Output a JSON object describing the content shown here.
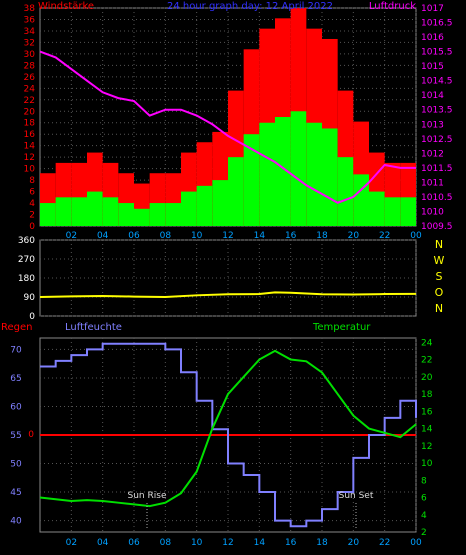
{
  "panel1": {
    "title": "24 hour graph day: 12 April 2022",
    "left_label": "Windstärke",
    "right_label": "Luftdruck",
    "wind_ticks": [
      "0",
      "2",
      "4",
      "6",
      "8",
      "10",
      "12",
      "14",
      "16",
      "18",
      "20",
      "22",
      "24",
      "26",
      "28",
      "30",
      "32",
      "34",
      "36",
      "38"
    ],
    "pressure_ticks": [
      "1009.5",
      "1010",
      "1010.5",
      "1011",
      "1011.5",
      "1012",
      "1012.5",
      "1013",
      "1013.5",
      "1014",
      "1014.5",
      "1015",
      "1015.5",
      "1016",
      "1016.5",
      "1017"
    ]
  },
  "panel2": {
    "dir_ticks": [
      "0",
      "90",
      "180",
      "270",
      "360"
    ],
    "compass": [
      "N",
      "W",
      "S",
      "O",
      "N"
    ]
  },
  "panel3": {
    "rain_label": "Regen",
    "humidity_label": "Luftfeuchte",
    "temp_label": "Temperatur",
    "humidity_ticks": [
      "40",
      "45",
      "50",
      "55",
      "60",
      "65",
      "70"
    ],
    "rain_zero": "0",
    "temp_ticks": [
      "2",
      "4",
      "6",
      "8",
      "10",
      "12",
      "14",
      "16",
      "18",
      "20",
      "22",
      "24"
    ],
    "sunrise": "Sun Rise",
    "sunset": "Sun Set"
  },
  "x_ticks": [
    "02",
    "04",
    "06",
    "08",
    "10",
    "12",
    "14",
    "16",
    "18",
    "20",
    "22",
    "00"
  ],
  "colors": {
    "wind_gust": "#ff0000",
    "wind_avg": "#00ff00",
    "pressure": "#ff00ff",
    "direction": "#ffff00",
    "humidity": "#8080ff",
    "temperature": "#00e000",
    "rain": "#ff0000",
    "grid": "#555555"
  },
  "chart_data": [
    {
      "type": "bar",
      "title": "24 hour graph day: 12 April 2022",
      "x": [
        0,
        1,
        2,
        3,
        4,
        5,
        6,
        7,
        8,
        9,
        10,
        11,
        12,
        13,
        14,
        15,
        16,
        17,
        18,
        19,
        20,
        21,
        22,
        23,
        24
      ],
      "series": [
        {
          "name": "Windstärke",
          "values": [
            4,
            5,
            5,
            6,
            5,
            4,
            3,
            4,
            4,
            6,
            7,
            8,
            12,
            16,
            18,
            19,
            20,
            18,
            17,
            12,
            9,
            6,
            5,
            5,
            6
          ]
        },
        {
          "name": "Luftdruck",
          "values": [
            1015.5,
            1015.3,
            1014.9,
            1014.5,
            1014.1,
            1013.9,
            1013.8,
            1013.3,
            1013.5,
            1013.5,
            1013.3,
            1013.0,
            1012.6,
            1012.3,
            1012.0,
            1011.7,
            1011.3,
            1010.9,
            1010.6,
            1010.3,
            1010.5,
            1011.0,
            1011.6,
            1011.5,
            1011.5
          ]
        }
      ],
      "ylim_left": [
        0,
        38
      ],
      "ylim_right": [
        1009.5,
        1017
      ]
    },
    {
      "type": "line",
      "x": [
        0,
        2,
        4,
        6,
        8,
        10,
        12,
        14,
        15,
        16,
        18,
        20,
        22,
        24
      ],
      "series": [
        {
          "name": "",
          "values": [
            90,
            93,
            95,
            92,
            90,
            98,
            103,
            104,
            112,
            110,
            103,
            102,
            104,
            105
          ]
        }
      ],
      "ylim": [
        0,
        360
      ]
    },
    {
      "type": "line",
      "x": [
        0,
        1,
        2,
        3,
        4,
        5,
        6,
        7,
        8,
        9,
        10,
        11,
        12,
        13,
        14,
        15,
        16,
        17,
        18,
        19,
        20,
        21,
        22,
        23,
        24
      ],
      "series": [
        {
          "name": "Luftfeuchte",
          "values": [
            67,
            68,
            69,
            70,
            71,
            71,
            71,
            71,
            70,
            66,
            61,
            56,
            50,
            48,
            45,
            40,
            39,
            40,
            42,
            45,
            51,
            55,
            58,
            61,
            58
          ]
        },
        {
          "name": "Temperatur",
          "values": [
            6.0,
            5.8,
            5.6,
            5.7,
            5.6,
            5.4,
            5.2,
            5.0,
            5.4,
            6.5,
            9.0,
            14.0,
            18.0,
            20.0,
            22.0,
            23.0,
            22.0,
            21.8,
            20.5,
            18.0,
            15.5,
            14.0,
            13.5,
            13.0,
            14.5
          ]
        },
        {
          "name": "Regen",
          "values": [
            0,
            0,
            0,
            0,
            0,
            0,
            0,
            0,
            0,
            0,
            0,
            0,
            0,
            0,
            0,
            0,
            0,
            0,
            0,
            0,
            0,
            0,
            0,
            0,
            0
          ]
        }
      ],
      "ylim_left": [
        38,
        72
      ],
      "ylim_right": [
        2,
        24.5
      ]
    }
  ]
}
